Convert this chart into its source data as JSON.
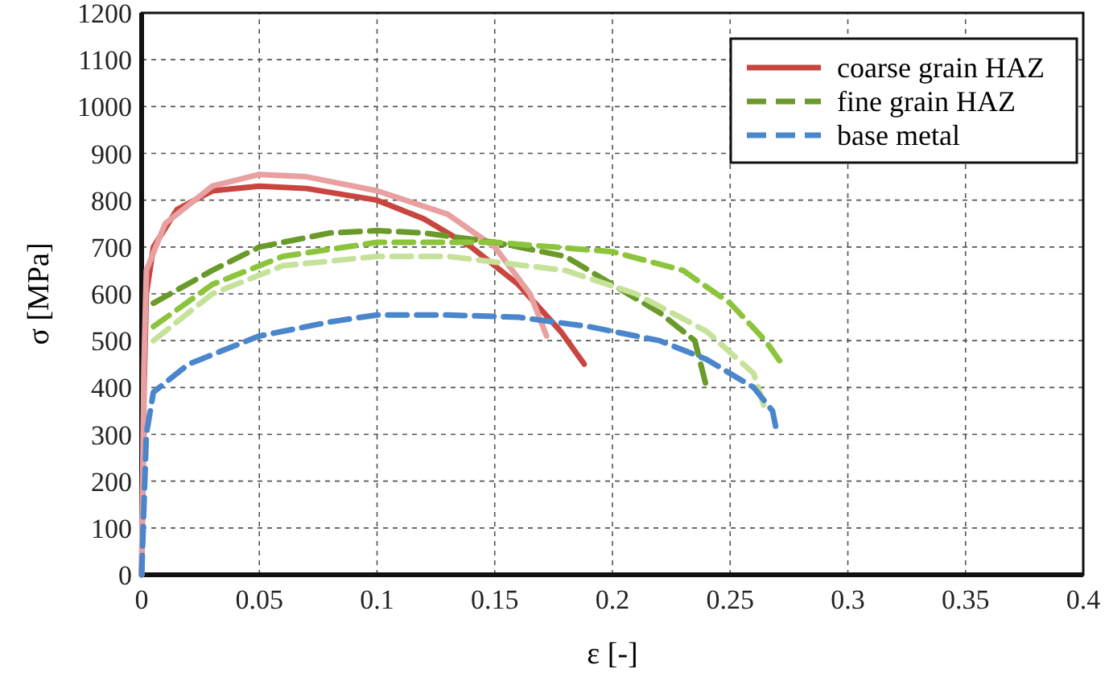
{
  "chart_data": {
    "type": "line",
    "xlabel": "ε [-]",
    "ylabel": "σ [MPa]",
    "xlim": [
      0,
      0.4
    ],
    "ylim": [
      0,
      1200
    ],
    "xticks": [
      0,
      0.05,
      0.1,
      0.15,
      0.2,
      0.25,
      0.3,
      0.35,
      0.4
    ],
    "yticks": [
      0,
      100,
      200,
      300,
      400,
      500,
      600,
      700,
      800,
      900,
      1000,
      1100,
      1200
    ],
    "grid": true,
    "legend": "top right",
    "series": [
      {
        "name": "coarse grain HAZ",
        "color": "#c8463f",
        "line_style": "solid",
        "x": [
          0,
          0.001,
          0.002,
          0.005,
          0.015,
          0.03,
          0.05,
          0.07,
          0.1,
          0.12,
          0.14,
          0.16,
          0.178,
          0.188
        ],
        "values": [
          0,
          400,
          600,
          700,
          780,
          820,
          830,
          825,
          800,
          760,
          700,
          620,
          520,
          450
        ]
      },
      {
        "color": "#e8a0a0",
        "line_style": "solid",
        "x": [
          0,
          0.001,
          0.002,
          0.01,
          0.03,
          0.05,
          0.07,
          0.1,
          0.13,
          0.15,
          0.165,
          0.172
        ],
        "values": [
          0,
          450,
          650,
          750,
          830,
          855,
          850,
          820,
          770,
          700,
          600,
          510
        ]
      },
      {
        "name": "fine grain HAZ",
        "color": "#6a9a2a",
        "line_style": "dashed",
        "x": [
          0.005,
          0.03,
          0.05,
          0.08,
          0.1,
          0.12,
          0.15,
          0.18,
          0.2,
          0.22,
          0.235,
          0.24
        ],
        "values": [
          580,
          650,
          700,
          730,
          735,
          730,
          710,
          680,
          620,
          560,
          500,
          400
        ]
      },
      {
        "color": "#8cc43c",
        "line_style": "dashed",
        "x": [
          0.005,
          0.03,
          0.06,
          0.1,
          0.15,
          0.2,
          0.23,
          0.25,
          0.265,
          0.272
        ],
        "values": [
          530,
          620,
          680,
          710,
          710,
          690,
          650,
          580,
          500,
          450
        ]
      },
      {
        "color": "#c6e29a",
        "line_style": "dashed",
        "x": [
          0.005,
          0.03,
          0.06,
          0.1,
          0.13,
          0.18,
          0.21,
          0.24,
          0.26,
          0.265
        ],
        "values": [
          500,
          600,
          660,
          680,
          680,
          650,
          600,
          520,
          430,
          350
        ]
      },
      {
        "name": "base metal",
        "color": "#4a86cc",
        "line_style": "dashed",
        "x": [
          0,
          0.002,
          0.005,
          0.02,
          0.05,
          0.08,
          0.1,
          0.13,
          0.16,
          0.19,
          0.22,
          0.24,
          0.26,
          0.268,
          0.27
        ],
        "values": [
          0,
          300,
          390,
          450,
          510,
          540,
          555,
          555,
          550,
          530,
          500,
          460,
          400,
          350,
          300
        ]
      }
    ]
  }
}
